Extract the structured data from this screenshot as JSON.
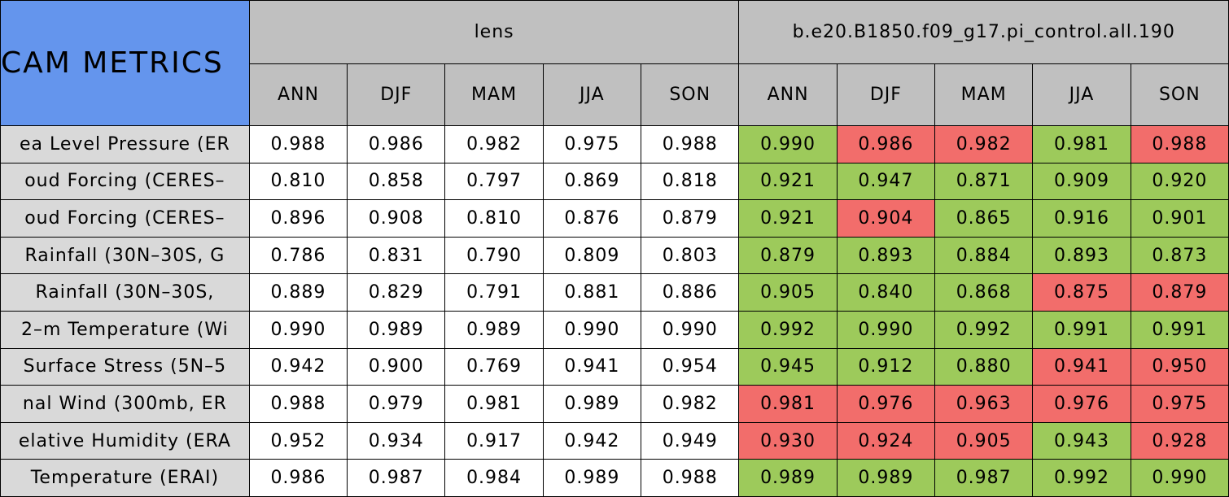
{
  "table": {
    "title": "CAM METRICS",
    "groups": [
      "lens",
      "b.e20.B1850.f09_g17.pi_control.all.190"
    ],
    "seasons": [
      "ANN",
      "DJF",
      "MAM",
      "JJA",
      "SON"
    ],
    "colors": {
      "good": "#9dca5b",
      "bad": "#f26d6b"
    },
    "rows": [
      {
        "label": "ea Level Pressure (ER",
        "lens": [
          "0.988",
          "0.986",
          "0.982",
          "0.975",
          "0.988"
        ],
        "control": [
          "0.990",
          "0.986",
          "0.982",
          "0.981",
          "0.988"
        ],
        "status": [
          "good",
          "bad",
          "bad",
          "good",
          "bad"
        ]
      },
      {
        "label": "oud Forcing (CERES–",
        "lens": [
          "0.810",
          "0.858",
          "0.797",
          "0.869",
          "0.818"
        ],
        "control": [
          "0.921",
          "0.947",
          "0.871",
          "0.909",
          "0.920"
        ],
        "status": [
          "good",
          "good",
          "good",
          "good",
          "good"
        ]
      },
      {
        "label": "oud Forcing (CERES–",
        "lens": [
          "0.896",
          "0.908",
          "0.810",
          "0.876",
          "0.879"
        ],
        "control": [
          "0.921",
          "0.904",
          "0.865",
          "0.916",
          "0.901"
        ],
        "status": [
          "good",
          "bad",
          "good",
          "good",
          "good"
        ]
      },
      {
        "label": "Rainfall (30N–30S, G",
        "lens": [
          "0.786",
          "0.831",
          "0.790",
          "0.809",
          "0.803"
        ],
        "control": [
          "0.879",
          "0.893",
          "0.884",
          "0.893",
          "0.873"
        ],
        "status": [
          "good",
          "good",
          "good",
          "good",
          "good"
        ]
      },
      {
        "label": "Rainfall (30N–30S,",
        "lens": [
          "0.889",
          "0.829",
          "0.791",
          "0.881",
          "0.886"
        ],
        "control": [
          "0.905",
          "0.840",
          "0.868",
          "0.875",
          "0.879"
        ],
        "status": [
          "good",
          "good",
          "good",
          "bad",
          "bad"
        ]
      },
      {
        "label": "2–m Temperature (Wi",
        "lens": [
          "0.990",
          "0.989",
          "0.989",
          "0.990",
          "0.990"
        ],
        "control": [
          "0.992",
          "0.990",
          "0.992",
          "0.991",
          "0.991"
        ],
        "status": [
          "good",
          "good",
          "good",
          "good",
          "good"
        ]
      },
      {
        "label": "Surface Stress (5N–5",
        "lens": [
          "0.942",
          "0.900",
          "0.769",
          "0.941",
          "0.954"
        ],
        "control": [
          "0.945",
          "0.912",
          "0.880",
          "0.941",
          "0.950"
        ],
        "status": [
          "good",
          "good",
          "good",
          "bad",
          "bad"
        ]
      },
      {
        "label": "nal Wind (300mb, ER",
        "lens": [
          "0.988",
          "0.979",
          "0.981",
          "0.989",
          "0.982"
        ],
        "control": [
          "0.981",
          "0.976",
          "0.963",
          "0.976",
          "0.975"
        ],
        "status": [
          "bad",
          "bad",
          "bad",
          "bad",
          "bad"
        ]
      },
      {
        "label": "elative Humidity (ERA",
        "lens": [
          "0.952",
          "0.934",
          "0.917",
          "0.942",
          "0.949"
        ],
        "control": [
          "0.930",
          "0.924",
          "0.905",
          "0.943",
          "0.928"
        ],
        "status": [
          "bad",
          "bad",
          "bad",
          "good",
          "bad"
        ]
      },
      {
        "label": "Temperature (ERAI)",
        "lens": [
          "0.986",
          "0.987",
          "0.984",
          "0.989",
          "0.988"
        ],
        "control": [
          "0.989",
          "0.989",
          "0.987",
          "0.992",
          "0.990"
        ],
        "status": [
          "good",
          "good",
          "good",
          "good",
          "good"
        ]
      }
    ]
  }
}
